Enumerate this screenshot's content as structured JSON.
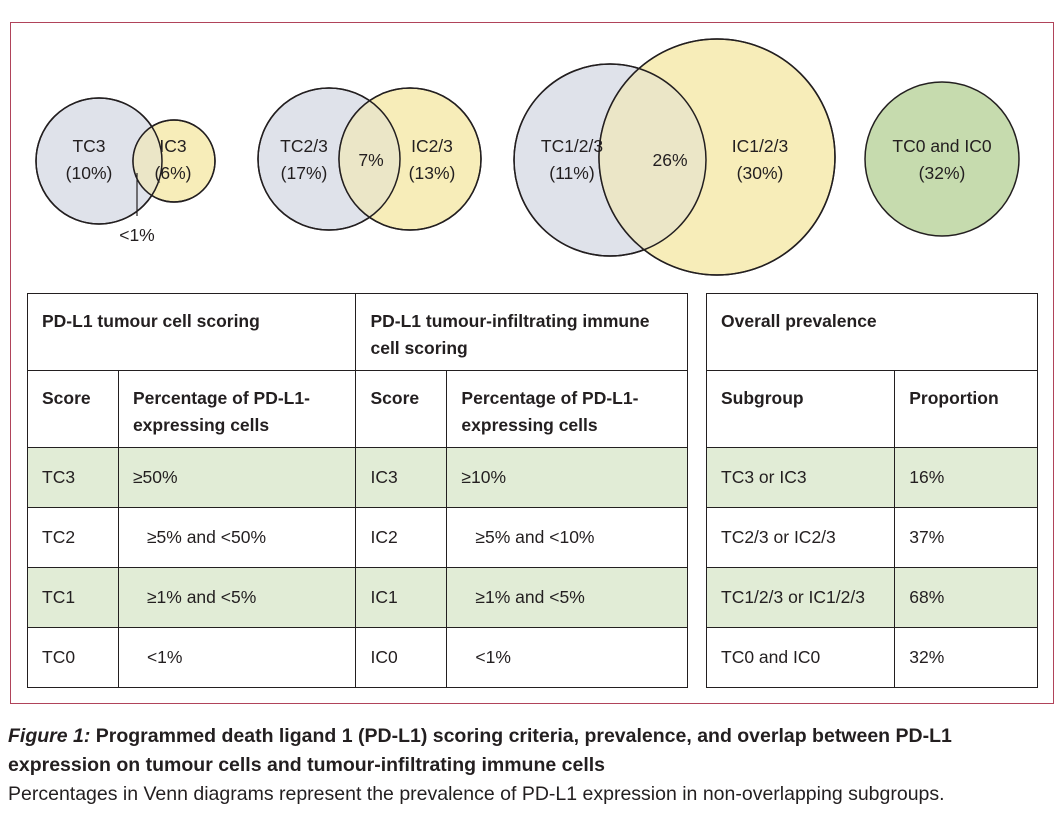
{
  "venn": [
    {
      "left_label": "TC3",
      "left_value": "(10%)",
      "right_label": "IC3",
      "right_value": "(6%)",
      "overlap": "<1%"
    },
    {
      "left_label": "TC2/3",
      "left_value": "(17%)",
      "right_label": "IC2/3",
      "right_value": "(13%)",
      "overlap": "7%"
    },
    {
      "left_label": "TC1/2/3",
      "left_value": "(11%)",
      "right_label": "IC1/2/3",
      "right_value": "(30%)",
      "overlap": "26%"
    },
    {
      "label": "TC0 and IC0",
      "value": "(32%)"
    }
  ],
  "colors": {
    "tc_fill": "#dfe2ea",
    "ic_fill": "#f7edb9",
    "overlap_fill": "#ebe6c7",
    "none_fill": "#c6dbae",
    "shade": "#e1ecd6",
    "frame": "#b0435a"
  },
  "scoring_table": {
    "tc_header": "PD-L1 tumour cell scoring",
    "ic_header": "PD-L1 tumour-infiltrating immune cell scoring",
    "col_score": "Score",
    "col_percentage": "Percentage of PD-L1-expressing cells",
    "rows": [
      {
        "tc_score": "TC3",
        "tc_pct": "≥50%",
        "ic_score": "IC3",
        "ic_pct": "≥10%"
      },
      {
        "tc_score": "TC2",
        "tc_pct": "≥5% and <50%",
        "ic_score": "IC2",
        "ic_pct": "≥5% and <10%"
      },
      {
        "tc_score": "TC1",
        "tc_pct": "≥1% and <5%",
        "ic_score": "IC1",
        "ic_pct": "≥1% and <5%"
      },
      {
        "tc_score": "TC0",
        "tc_pct": "<1%",
        "ic_score": "IC0",
        "ic_pct": "<1%"
      }
    ]
  },
  "prevalence_table": {
    "header": "Overall prevalence",
    "col_subgroup": "Subgroup",
    "col_proportion": "Proportion",
    "rows": [
      {
        "subgroup": "TC3 or IC3",
        "proportion": "16%"
      },
      {
        "subgroup": "TC2/3 or IC2/3",
        "proportion": "37%"
      },
      {
        "subgroup": "TC1/2/3 or IC1/2/3",
        "proportion": "68%"
      },
      {
        "subgroup": "TC0 and IC0",
        "proportion": "32%"
      }
    ]
  },
  "caption": {
    "label": "Figure 1:",
    "title": "Programmed death ligand 1 (PD-L1) scoring criteria, prevalence, and overlap between PD-L1 expression on tumour cells and tumour-infiltrating immune cells",
    "text": "Percentages in Venn diagrams represent the prevalence of PD-L1 expression in non-overlapping subgroups."
  }
}
